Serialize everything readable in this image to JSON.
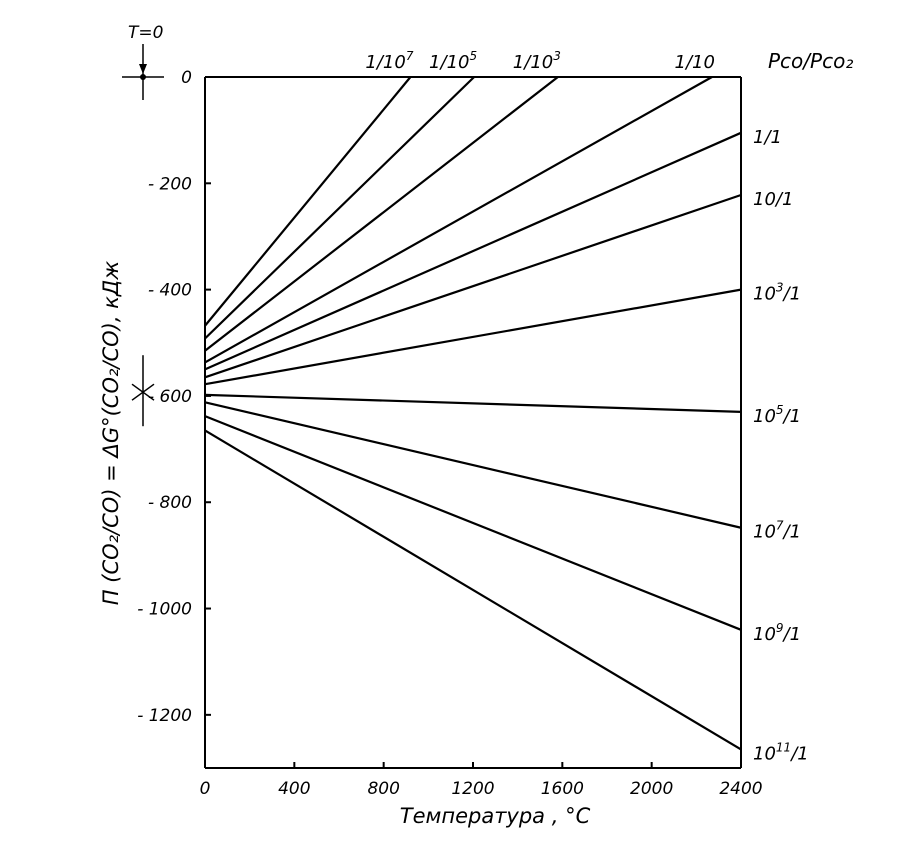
{
  "chart_data": {
    "type": "line",
    "title": "",
    "xlabel": "Температура , °С",
    "ylabel": "Π (CO₂/CO) = ΔG°(CO₂/CO), кДж",
    "xlim": [
      0,
      2400
    ],
    "ylim": [
      -1300,
      0
    ],
    "x_ticks": [
      0,
      400,
      800,
      1200,
      1600,
      2000,
      2400
    ],
    "y_ticks": [
      0,
      -200,
      -400,
      -600,
      -800,
      -1000,
      -1200
    ],
    "x_tick_labels": [
      "0",
      "400",
      "800",
      "1200",
      "1600",
      "2000",
      "2400"
    ],
    "y_tick_labels": [
      "0",
      "- 200",
      "- 400",
      "- 600",
      "- 800",
      "- 1000",
      "- 1200"
    ],
    "grid": false,
    "legend_title": "Pco/Pco₂",
    "t0_label": "T=0",
    "t0_value": -593,
    "series": [
      {
        "name": "1/10⁷",
        "label_base": "1/10",
        "label_exp": "7",
        "label_position": "top",
        "x": [
          0,
          920
        ],
        "y": [
          -468,
          0
        ]
      },
      {
        "name": "1/10⁵",
        "label_base": "1/10",
        "label_exp": "5",
        "label_position": "top",
        "x": [
          0,
          1205
        ],
        "y": [
          -492,
          0
        ]
      },
      {
        "name": "1/10³",
        "label_base": "1/10",
        "label_exp": "3",
        "label_position": "top",
        "x": [
          0,
          1580
        ],
        "y": [
          -515,
          0
        ]
      },
      {
        "name": "1/10",
        "label_base": "1/10",
        "label_exp": "",
        "label_position": "top",
        "x": [
          0,
          2270
        ],
        "y": [
          -537,
          0
        ]
      },
      {
        "name": "1/1",
        "label_base": "1/1",
        "label_exp": "",
        "label_position": "right",
        "x": [
          0,
          2400
        ],
        "y": [
          -550,
          -105
        ]
      },
      {
        "name": "10/1",
        "label_base": "10/1",
        "label_exp": "",
        "label_position": "right",
        "x": [
          0,
          2400
        ],
        "y": [
          -565,
          -222
        ]
      },
      {
        "name": "10³/1",
        "label_base": "10",
        "label_exp": "3",
        "label_tail": "/1",
        "label_position": "right",
        "x": [
          0,
          2400
        ],
        "y": [
          -578,
          -400
        ]
      },
      {
        "name": "10⁵/1",
        "label_base": "10",
        "label_exp": "5",
        "label_tail": "/1",
        "label_position": "right",
        "x": [
          0,
          2400
        ],
        "y": [
          -598,
          -630
        ]
      },
      {
        "name": "10⁷/1",
        "label_base": "10",
        "label_exp": "7",
        "label_tail": "/1",
        "label_position": "right",
        "x": [
          0,
          2400
        ],
        "y": [
          -612,
          -848
        ]
      },
      {
        "name": "10⁹/1",
        "label_base": "10",
        "label_exp": "9",
        "label_tail": "/1",
        "label_position": "right",
        "x": [
          0,
          2400
        ],
        "y": [
          -638,
          -1040
        ]
      },
      {
        "name": "10¹¹/1",
        "label_base": "10",
        "label_exp": "11",
        "label_tail": "/1",
        "label_position": "right",
        "x": [
          0,
          2400
        ],
        "y": [
          -665,
          -1265
        ]
      }
    ]
  }
}
